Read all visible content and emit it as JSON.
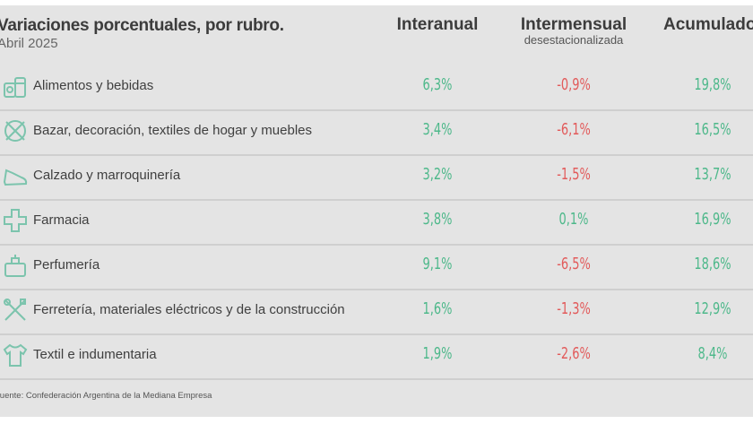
{
  "chart_data": {
    "type": "table",
    "title": "Variaciones porcentuales, por rubro.",
    "subtitle": "Abril 2025",
    "columns": [
      {
        "label": "Interanual",
        "sublabel": ""
      },
      {
        "label": "Intermensual",
        "sublabel": "desestacionalizada"
      },
      {
        "label": "Acumulado",
        "sublabel": ""
      }
    ],
    "rows": [
      {
        "label": "Alimentos y bebidas",
        "icon": "groceries-icon",
        "values": [
          "6,3%",
          "-0,9%",
          "19,8%"
        ]
      },
      {
        "label": "Bazar, decoración, textiles de hogar y muebles",
        "icon": "home-decor-icon",
        "values": [
          "3,4%",
          "-6,1%",
          "16,5%"
        ]
      },
      {
        "label": "Calzado y marroquinería",
        "icon": "shoe-icon",
        "values": [
          "3,2%",
          "-1,5%",
          "13,7%"
        ]
      },
      {
        "label": "Farmacia",
        "icon": "pharmacy-cross-icon",
        "values": [
          "3,8%",
          "0,1%",
          "16,9%"
        ]
      },
      {
        "label": "Perfumería",
        "icon": "perfume-icon",
        "values": [
          "9,1%",
          "-6,5%",
          "18,6%"
        ]
      },
      {
        "label": "Ferretería, materiales eléctricos y de la construcción",
        "icon": "tools-icon",
        "values": [
          "1,6%",
          "-1,3%",
          "12,9%"
        ]
      },
      {
        "label": "Textil e indumentaria",
        "icon": "shirt-icon",
        "values": [
          "1,9%",
          "-2,6%",
          "8,4%"
        ]
      }
    ],
    "source": "Fuente: Confederación Argentina de la Mediana Empresa"
  },
  "colors": {
    "positive": "#4db88a",
    "negative": "#e25a5a",
    "icon": "#7cc4ad"
  }
}
